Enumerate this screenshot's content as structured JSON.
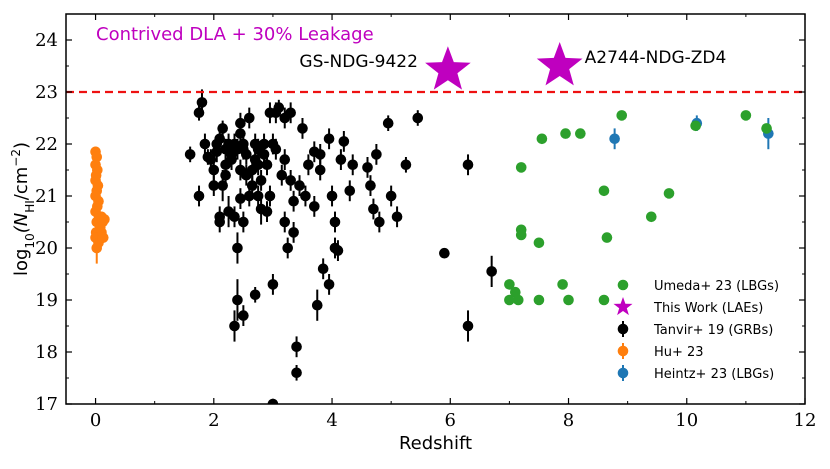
{
  "chart_data": {
    "type": "scatter",
    "xlabel": "Redshift",
    "ylabel_parts": {
      "pre": "log",
      "sub": "10",
      "mid": "(N",
      "sub2": "HI",
      "post": "/cm",
      "sup": "−2",
      "end": ")"
    },
    "xlim": [
      -0.5,
      12
    ],
    "ylim": [
      17,
      24.5
    ],
    "xticks": [
      0,
      2,
      4,
      6,
      8,
      10,
      12
    ],
    "yticks": [
      17,
      18,
      19,
      20,
      21,
      22,
      23,
      24
    ],
    "grid": false,
    "legend_position": "bottom-right",
    "reference_line": {
      "y": 23,
      "color": "#ee1111",
      "style": "dashed",
      "label": "Contrived DLA + 30% Leakage"
    },
    "colors": {
      "umeda": "#2ca02c",
      "this_work": "#bf00bf",
      "tanvir": "#000000",
      "hu": "#ff7f0e",
      "heintz": "#1f77b4",
      "reference": "#ee1111"
    },
    "series": [
      {
        "name": "Umeda+ 23 (LBGs)",
        "marker": "circle",
        "points": [
          [
            7.2,
            21.55
          ],
          [
            7.0,
            19.3
          ],
          [
            7.1,
            19.15
          ],
          [
            7.0,
            19.0
          ],
          [
            7.15,
            19.0
          ],
          [
            7.2,
            20.35
          ],
          [
            7.2,
            20.25
          ],
          [
            7.5,
            20.1
          ],
          [
            7.5,
            19.0
          ],
          [
            7.55,
            22.1
          ],
          [
            7.9,
            19.3
          ],
          [
            7.95,
            22.2
          ],
          [
            8.0,
            19.0
          ],
          [
            8.2,
            22.2
          ],
          [
            8.6,
            21.1
          ],
          [
            8.65,
            20.2
          ],
          [
            8.6,
            19.0
          ],
          [
            8.9,
            22.55
          ],
          [
            9.4,
            20.6
          ],
          [
            9.7,
            21.05
          ],
          [
            10.15,
            22.35
          ],
          [
            11.0,
            22.55
          ],
          [
            11.35,
            22.3
          ]
        ]
      },
      {
        "name": "This Work (LAEs)",
        "marker": "star",
        "points": [
          [
            5.96,
            23.42,
            "GS-NDG-9422"
          ],
          [
            7.85,
            23.5,
            "A2744-NDG-ZD4"
          ]
        ]
      },
      {
        "name": "Tanvir+ 19 (GRBs)",
        "marker": "circle",
        "points": [
          [
            1.6,
            21.8,
            0.15
          ],
          [
            1.75,
            22.6,
            0.15
          ],
          [
            1.8,
            22.8,
            0.25
          ],
          [
            1.85,
            22.0,
            0.2
          ],
          [
            1.9,
            21.75,
            0.15
          ],
          [
            1.75,
            21.0,
            0.2
          ],
          [
            1.95,
            21.7,
            0.2
          ],
          [
            2.0,
            21.5,
            0.2
          ],
          [
            2.0,
            21.2,
            0.2
          ],
          [
            2.05,
            22.0,
            0.15
          ],
          [
            2.05,
            21.85,
            0.2
          ],
          [
            2.1,
            20.6,
            0.2
          ],
          [
            2.1,
            20.5,
            0.2
          ],
          [
            2.1,
            22.1,
            0.2
          ],
          [
            2.15,
            22.3,
            0.15
          ],
          [
            2.15,
            21.2,
            0.3
          ],
          [
            2.2,
            21.9,
            0.2
          ],
          [
            2.2,
            21.6,
            0.2
          ],
          [
            2.2,
            21.4,
            0.2
          ],
          [
            2.25,
            20.7,
            0.3
          ],
          [
            2.25,
            22.0,
            0.2
          ],
          [
            2.3,
            21.8,
            0.2
          ],
          [
            2.3,
            21.7,
            0.2
          ],
          [
            2.35,
            22.0,
            0.2
          ],
          [
            2.35,
            20.6,
            0.2
          ],
          [
            2.35,
            18.5,
            0.3
          ],
          [
            2.4,
            21.9,
            0.2
          ],
          [
            2.4,
            19.0,
            0.4
          ],
          [
            2.4,
            20.0,
            0.3
          ],
          [
            2.45,
            22.2,
            0.2
          ],
          [
            2.45,
            21.5,
            0.2
          ],
          [
            2.45,
            20.95,
            0.2
          ],
          [
            2.45,
            22.4,
            0.2
          ],
          [
            2.5,
            22.0,
            0.2
          ],
          [
            2.5,
            21.9,
            0.2
          ],
          [
            2.5,
            20.5,
            0.2
          ],
          [
            2.5,
            18.7,
            0.2
          ],
          [
            2.55,
            21.4,
            0.2
          ],
          [
            2.55,
            21.8,
            0.2
          ],
          [
            2.6,
            22.5,
            0.2
          ],
          [
            2.6,
            21.0,
            0.2
          ],
          [
            2.65,
            21.5,
            0.2
          ],
          [
            2.65,
            21.2,
            0.2
          ],
          [
            2.7,
            21.7,
            0.15
          ],
          [
            2.7,
            22.0,
            0.2
          ],
          [
            2.7,
            19.1,
            0.15
          ],
          [
            2.75,
            21.9,
            0.2
          ],
          [
            2.75,
            21.6,
            0.2
          ],
          [
            2.75,
            21.0,
            0.2
          ],
          [
            2.8,
            21.3,
            0.2
          ],
          [
            2.8,
            20.75,
            0.3
          ],
          [
            2.85,
            22.0,
            0.2
          ],
          [
            2.85,
            21.8,
            0.2
          ],
          [
            2.9,
            21.6,
            0.2
          ],
          [
            2.9,
            20.7,
            0.2
          ],
          [
            2.95,
            21.0,
            0.2
          ],
          [
            2.95,
            22.6,
            0.2
          ],
          [
            3.0,
            22.0,
            0.2
          ],
          [
            3.0,
            19.3,
            0.2
          ],
          [
            3.05,
            21.9,
            0.2
          ],
          [
            3.05,
            22.6,
            0.2
          ],
          [
            3.1,
            22.7,
            0.15
          ],
          [
            3.15,
            21.4,
            0.2
          ],
          [
            3.2,
            21.7,
            0.2
          ],
          [
            3.2,
            22.5,
            0.2
          ],
          [
            3.2,
            20.5,
            0.2
          ],
          [
            3.25,
            20.0,
            0.2
          ],
          [
            3.3,
            22.6,
            0.2
          ],
          [
            3.3,
            21.3,
            0.2
          ],
          [
            3.35,
            20.9,
            0.2
          ],
          [
            3.35,
            20.3,
            0.2
          ],
          [
            3.4,
            17.6,
            0.15
          ],
          [
            3.4,
            18.1,
            0.2
          ],
          [
            3.45,
            21.2,
            0.2
          ],
          [
            3.5,
            22.3,
            0.2
          ],
          [
            3.55,
            21.0,
            0.2
          ],
          [
            3.6,
            21.6,
            0.2
          ],
          [
            3.7,
            20.8,
            0.2
          ],
          [
            3.7,
            21.85,
            0.2
          ],
          [
            3.75,
            18.9,
            0.3
          ],
          [
            3.8,
            21.8,
            0.2
          ],
          [
            3.8,
            21.5,
            0.2
          ],
          [
            3.85,
            19.6,
            0.2
          ],
          [
            3.95,
            22.1,
            0.2
          ],
          [
            3.95,
            19.3,
            0.2
          ],
          [
            4.0,
            21.0,
            0.2
          ],
          [
            4.05,
            20.0,
            0.2
          ],
          [
            4.05,
            20.5,
            0.2
          ],
          [
            4.1,
            19.95,
            0.2
          ],
          [
            4.15,
            21.7,
            0.2
          ],
          [
            4.2,
            22.05,
            0.2
          ],
          [
            4.3,
            21.1,
            0.2
          ],
          [
            4.35,
            21.6,
            0.2
          ],
          [
            4.6,
            21.55,
            0.2
          ],
          [
            4.65,
            21.2,
            0.2
          ],
          [
            4.7,
            20.75,
            0.2
          ],
          [
            4.75,
            21.8,
            0.2
          ],
          [
            4.8,
            20.5,
            0.2
          ],
          [
            4.95,
            22.4,
            0.15
          ],
          [
            5.0,
            21.0,
            0.2
          ],
          [
            5.1,
            20.6,
            0.2
          ],
          [
            5.25,
            21.6,
            0.15
          ],
          [
            5.45,
            22.5,
            0.15
          ],
          [
            5.9,
            19.9,
            0.05
          ],
          [
            6.3,
            21.6,
            0.2
          ],
          [
            6.3,
            18.5,
            0.3
          ],
          [
            6.7,
            19.55,
            0.3
          ],
          [
            3.0,
            17.0,
            0.1
          ]
        ]
      },
      {
        "name": "Hu+ 23",
        "marker": "circle",
        "points": [
          [
            0.0,
            21.85,
            0.1
          ],
          [
            0.02,
            21.75,
            0.1
          ],
          [
            0.0,
            21.6,
            0.1
          ],
          [
            0.03,
            21.5,
            0.1
          ],
          [
            0.01,
            21.4,
            0.1
          ],
          [
            0.0,
            21.3,
            0.1
          ],
          [
            0.04,
            21.2,
            0.1
          ],
          [
            0.02,
            21.1,
            0.1
          ],
          [
            0.0,
            21.0,
            0.1
          ],
          [
            0.05,
            20.9,
            0.1
          ],
          [
            0.03,
            20.8,
            0.1
          ],
          [
            0.0,
            20.7,
            0.1
          ],
          [
            0.06,
            20.6,
            0.1
          ],
          [
            0.02,
            20.5,
            0.1
          ],
          [
            0.1,
            20.6,
            0.1
          ],
          [
            0.12,
            20.5,
            0.1
          ],
          [
            0.08,
            20.4,
            0.1
          ],
          [
            0.01,
            20.3,
            0.1
          ],
          [
            0.1,
            20.3,
            0.1
          ],
          [
            0.0,
            20.2,
            0.1
          ],
          [
            0.05,
            20.1,
            0.1
          ],
          [
            0.02,
            20.0,
            0.3
          ],
          [
            0.15,
            20.55,
            0.1
          ],
          [
            0.13,
            20.2,
            0.1
          ]
        ]
      },
      {
        "name": "Heintz+ 23 (LBGs)",
        "marker": "circle",
        "points": [
          [
            8.78,
            22.1,
            0.2
          ],
          [
            10.17,
            22.4,
            0.15
          ],
          [
            11.38,
            22.2,
            0.3
          ]
        ]
      }
    ]
  }
}
